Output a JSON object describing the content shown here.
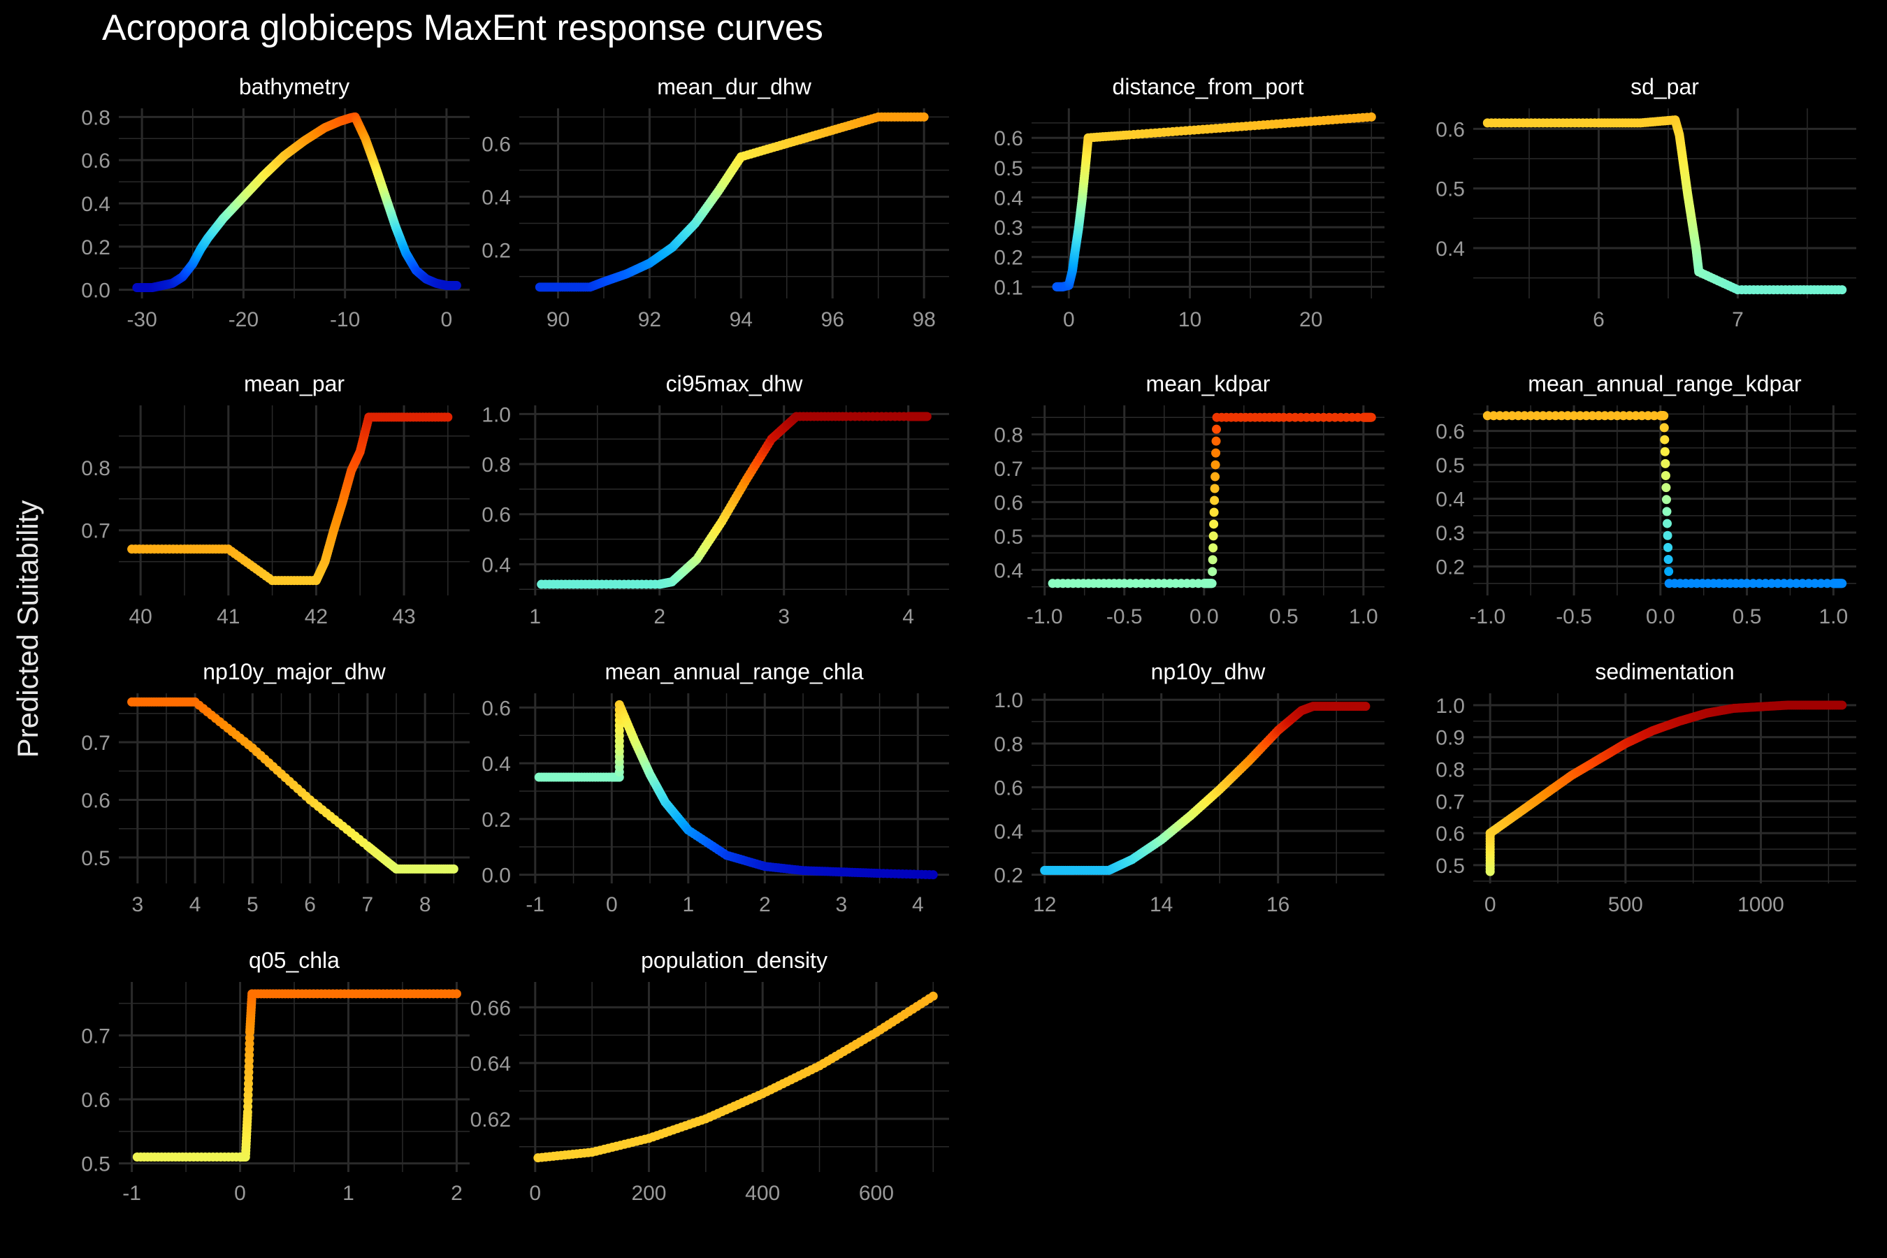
{
  "title": "Acropora globiceps MaxEnt response curves",
  "ylabel": "Predicted Suitability",
  "colors": {
    "background": "#000000",
    "grid": "#2a2a2a",
    "tick_text": "#9a9a9a",
    "panel_title": "#ffffff",
    "palette": [
      "#0000bb",
      "#0050ff",
      "#00a8ff",
      "#40e0f0",
      "#8fffc0",
      "#d8ff70",
      "#ffee40",
      "#ffc020",
      "#ff8c00",
      "#ff4a00",
      "#d01000",
      "#a00000"
    ]
  },
  "chart_data": [
    {
      "type": "scatter",
      "title": "bathymetry",
      "xlim": [
        -31,
        1
      ],
      "ylim": [
        0,
        0.8
      ],
      "xticks": [
        -30,
        -20,
        -10,
        0
      ],
      "yticks": [
        0.0,
        0.2,
        0.4,
        0.6,
        0.8
      ],
      "ytick_format": 1,
      "x": [
        -30.5,
        -29,
        -28,
        -27,
        -26,
        -25,
        -24.2,
        -23.5,
        -22,
        -20,
        -18,
        -16,
        -14,
        -12,
        -10.5,
        -9.5,
        -9,
        -8,
        -7,
        -6,
        -5,
        -4,
        -3,
        -2,
        -1,
        0,
        1
      ],
      "y": [
        0.01,
        0.01,
        0.02,
        0.03,
        0.06,
        0.12,
        0.19,
        0.24,
        0.33,
        0.43,
        0.53,
        0.62,
        0.69,
        0.75,
        0.78,
        0.795,
        0.8,
        0.7,
        0.57,
        0.43,
        0.29,
        0.17,
        0.09,
        0.05,
        0.03,
        0.02,
        0.02
      ]
    },
    {
      "type": "scatter",
      "title": "mean_dur_dhw",
      "xlim": [
        89.5,
        98.2
      ],
      "ylim": [
        0.05,
        0.7
      ],
      "xticks": [
        90,
        92,
        94,
        96,
        98
      ],
      "yticks": [
        0.2,
        0.4,
        0.6
      ],
      "ytick_format": 1,
      "x": [
        89.6,
        90.0,
        90.7,
        91.0,
        91.5,
        92.0,
        92.5,
        93.0,
        93.5,
        94.0,
        95.0,
        96.0,
        97.0,
        98.0
      ],
      "y": [
        0.06,
        0.06,
        0.06,
        0.08,
        0.11,
        0.15,
        0.21,
        0.3,
        0.42,
        0.55,
        0.6,
        0.65,
        0.7,
        0.7
      ]
    },
    {
      "type": "scatter",
      "title": "distance_from_port",
      "xlim": [
        -2,
        25
      ],
      "ylim": [
        0.09,
        0.67
      ],
      "xticks": [
        0,
        10,
        20
      ],
      "yticks": [
        0.1,
        0.2,
        0.3,
        0.4,
        0.5,
        0.6
      ],
      "ytick_format": 1,
      "x": [
        -1,
        -0.5,
        0,
        0.3,
        0.5,
        0.8,
        1.1,
        1.4,
        1.6,
        5,
        10,
        15,
        20,
        25
      ],
      "y": [
        0.1,
        0.1,
        0.105,
        0.155,
        0.215,
        0.295,
        0.395,
        0.515,
        0.6,
        0.61,
        0.625,
        0.64,
        0.655,
        0.67
      ]
    },
    {
      "type": "scatter",
      "title": "sd_par",
      "xlim": [
        5.2,
        7.75
      ],
      "ylim": [
        0.33,
        0.62
      ],
      "xticks": [
        6,
        7
      ],
      "yticks": [
        0.4,
        0.5,
        0.6
      ],
      "ytick_format": 1,
      "x": [
        5.2,
        5.6,
        6.0,
        6.3,
        6.55,
        6.58,
        6.61,
        6.64,
        6.67,
        6.7,
        6.72,
        7.0,
        7.4,
        7.75
      ],
      "y": [
        0.61,
        0.61,
        0.61,
        0.61,
        0.615,
        0.59,
        0.54,
        0.49,
        0.445,
        0.4,
        0.36,
        0.33,
        0.33,
        0.33
      ]
    },
    {
      "type": "scatter",
      "title": "mean_par",
      "xlim": [
        39.9,
        43.6
      ],
      "ylim": [
        0.61,
        0.885
      ],
      "xticks": [
        40,
        41,
        42,
        43
      ],
      "yticks": [
        0.7,
        0.8
      ],
      "ytick_format": 1,
      "x": [
        39.9,
        40.5,
        41.0,
        41.5,
        42.0,
        42.1,
        42.2,
        42.3,
        42.4,
        42.5,
        42.6,
        43.0,
        43.5
      ],
      "y": [
        0.67,
        0.67,
        0.67,
        0.62,
        0.62,
        0.65,
        0.7,
        0.745,
        0.795,
        0.825,
        0.88,
        0.88,
        0.88
      ]
    },
    {
      "type": "scatter",
      "title": "ci95max_dhw",
      "xlim": [
        1.0,
        4.2
      ],
      "ylim": [
        0.31,
        1.0
      ],
      "xticks": [
        1,
        2,
        3,
        4
      ],
      "yticks": [
        0.4,
        0.6,
        0.8,
        1.0
      ],
      "ytick_format": 1,
      "x": [
        1.05,
        1.5,
        2.0,
        2.1,
        2.3,
        2.5,
        2.7,
        2.9,
        3.1,
        3.5,
        4.0,
        4.15
      ],
      "y": [
        0.32,
        0.32,
        0.32,
        0.33,
        0.42,
        0.57,
        0.74,
        0.9,
        0.99,
        0.99,
        0.99,
        0.99
      ]
    },
    {
      "type": "scatter",
      "title": "mean_kdpar",
      "xlim": [
        -1.0,
        1.05
      ],
      "ylim": [
        0.35,
        0.86
      ],
      "xticks": [
        -1.0,
        -0.5,
        0.0,
        0.5,
        1.0
      ],
      "yticks": [
        0.4,
        0.5,
        0.6,
        0.7,
        0.8
      ],
      "ytick_format": 1,
      "x": [
        -0.95,
        -0.5,
        0.0,
        0.05,
        0.08,
        0.5,
        1.0,
        1.05
      ],
      "y": [
        0.36,
        0.36,
        0.36,
        0.36,
        0.85,
        0.85,
        0.85,
        0.85
      ]
    },
    {
      "type": "scatter",
      "title": "mean_annual_range_kdpar",
      "xlim": [
        -1.0,
        1.05
      ],
      "ylim": [
        0.14,
        0.65
      ],
      "xticks": [
        -1.0,
        -0.5,
        0.0,
        0.5,
        1.0
      ],
      "yticks": [
        0.2,
        0.3,
        0.4,
        0.5,
        0.6
      ],
      "ytick_format": 1,
      "x": [
        -1.0,
        -0.5,
        0.0,
        0.02,
        0.05,
        0.5,
        1.0,
        1.05
      ],
      "y": [
        0.645,
        0.645,
        0.645,
        0.645,
        0.15,
        0.15,
        0.15,
        0.15
      ]
    },
    {
      "type": "scatter",
      "title": "np10y_major_dhw",
      "xlim": [
        2.9,
        8.55
      ],
      "ylim": [
        0.47,
        0.77
      ],
      "xticks": [
        3,
        4,
        5,
        6,
        7,
        8
      ],
      "yticks": [
        0.5,
        0.6,
        0.7
      ],
      "ytick_format": 1,
      "x": [
        2.9,
        3.5,
        4.0,
        5.0,
        6.0,
        7.0,
        7.5,
        8.0,
        8.5
      ],
      "y": [
        0.77,
        0.77,
        0.77,
        0.69,
        0.6,
        0.52,
        0.48,
        0.48,
        0.48
      ]
    },
    {
      "type": "scatter",
      "title": "mean_annual_range_chla",
      "xlim": [
        -1.0,
        4.2
      ],
      "ylim": [
        0,
        0.62
      ],
      "xticks": [
        -1,
        0,
        1,
        2,
        3,
        4
      ],
      "yticks": [
        0.0,
        0.2,
        0.4,
        0.6
      ],
      "ytick_format": 1,
      "x": [
        -0.95,
        -0.5,
        0.0,
        0.1,
        0.1,
        0.3,
        0.5,
        0.7,
        1.0,
        1.5,
        2.0,
        2.5,
        3.0,
        3.5,
        4.2
      ],
      "y": [
        0.35,
        0.35,
        0.35,
        0.35,
        0.61,
        0.48,
        0.36,
        0.26,
        0.16,
        0.07,
        0.03,
        0.015,
        0.01,
        0.005,
        0.0
      ]
    },
    {
      "type": "scatter",
      "title": "np10y_dhw",
      "xlim": [
        12.0,
        17.6
      ],
      "ylim": [
        0.2,
        0.99
      ],
      "xticks": [
        12,
        14,
        16
      ],
      "yticks": [
        0.2,
        0.4,
        0.6,
        0.8,
        1.0
      ],
      "ytick_format": 1,
      "x": [
        12.0,
        12.5,
        13.1,
        13.5,
        14.0,
        14.5,
        15.0,
        15.5,
        16.0,
        16.4,
        16.6,
        17.0,
        17.5
      ],
      "y": [
        0.22,
        0.22,
        0.22,
        0.27,
        0.36,
        0.47,
        0.59,
        0.72,
        0.86,
        0.95,
        0.97,
        0.97,
        0.97
      ]
    },
    {
      "type": "scatter",
      "title": "sedimentation",
      "xlim": [
        -10,
        1300
      ],
      "ylim": [
        0.47,
        1.01
      ],
      "xticks": [
        0,
        500,
        1000
      ],
      "yticks": [
        0.5,
        0.6,
        0.7,
        0.8,
        0.9,
        1.0
      ],
      "ytick_format": 1,
      "x": [
        0,
        0,
        100,
        200,
        300,
        400,
        500,
        600,
        700,
        800,
        900,
        1000,
        1100,
        1200,
        1300
      ],
      "y": [
        0.48,
        0.6,
        0.66,
        0.72,
        0.78,
        0.83,
        0.88,
        0.92,
        0.95,
        0.975,
        0.99,
        0.995,
        1.0,
        1.0,
        1.0
      ]
    },
    {
      "type": "scatter",
      "title": "q05_chla",
      "xlim": [
        -1.0,
        2.0
      ],
      "ylim": [
        0.5,
        0.77
      ],
      "xticks": [
        -1,
        0,
        1,
        2
      ],
      "yticks": [
        0.5,
        0.6,
        0.7
      ],
      "ytick_format": 1,
      "x": [
        -0.95,
        -0.5,
        0.0,
        0.05,
        0.07,
        0.09,
        0.11,
        0.5,
        1.0,
        1.5,
        2.0
      ],
      "y": [
        0.51,
        0.51,
        0.51,
        0.51,
        0.58,
        0.705,
        0.765,
        0.765,
        0.765,
        0.765,
        0.765
      ]
    },
    {
      "type": "scatter",
      "title": "population_density",
      "xlim": [
        0,
        700
      ],
      "ylim": [
        0.604,
        0.666
      ],
      "xticks": [
        0,
        200,
        400,
        600
      ],
      "yticks": [
        0.62,
        0.64,
        0.66
      ],
      "ytick_format": 2,
      "x": [
        5,
        100,
        200,
        300,
        400,
        500,
        600,
        700
      ],
      "y": [
        0.606,
        0.608,
        0.613,
        0.62,
        0.629,
        0.639,
        0.651,
        0.664
      ]
    }
  ]
}
